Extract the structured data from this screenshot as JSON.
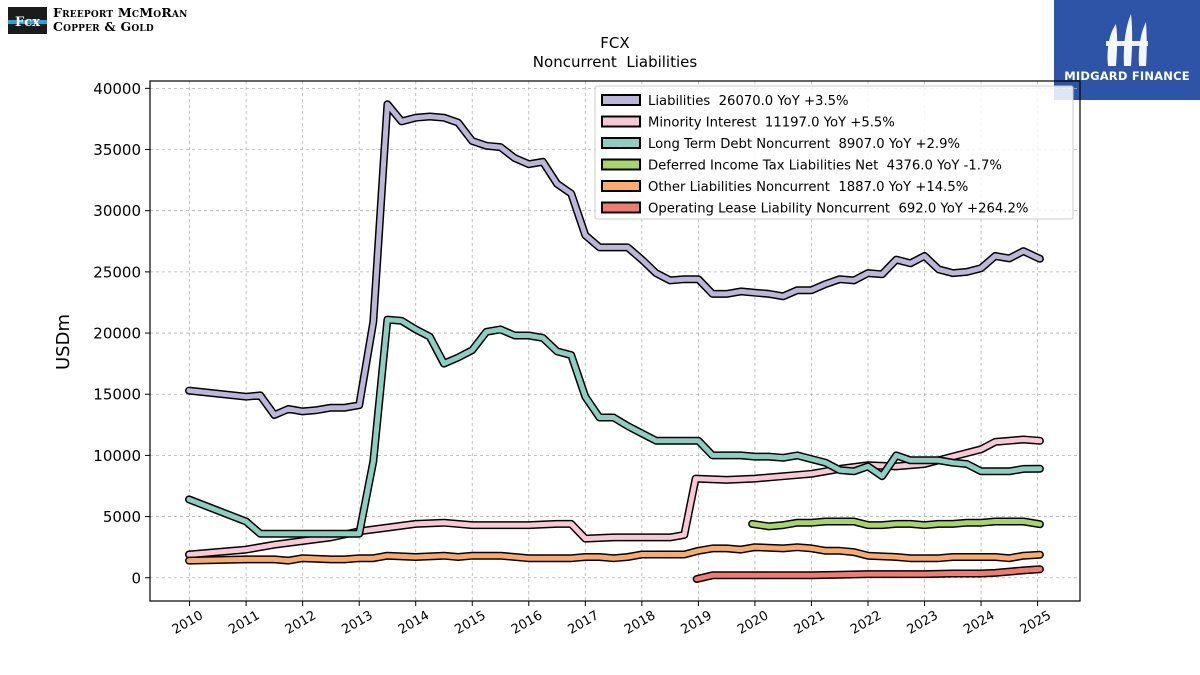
{
  "branding": {
    "company_line1": "Freeport McMoRan",
    "company_line2": "Copper & Gold",
    "logo_mark": "Fcx",
    "watermark": "MIDGARD FINANCE"
  },
  "chart_data": {
    "type": "line",
    "title": "FCX",
    "subtitle": "Noncurrent  Liabilities",
    "xlabel": "",
    "ylabel": "USDm",
    "xlim": [
      2009.3,
      2025.75
    ],
    "ylim": [
      -1900,
      40600
    ],
    "yticks": [
      0,
      5000,
      10000,
      15000,
      20000,
      25000,
      30000,
      35000,
      40000
    ],
    "xticks": [
      2010,
      2011,
      2012,
      2013,
      2014,
      2015,
      2016,
      2017,
      2018,
      2019,
      2020,
      2021,
      2022,
      2023,
      2024,
      2025
    ],
    "grid": true,
    "legend_position": "top-right",
    "series": [
      {
        "name": "Liabilities  26070.0 YoY +3.5%",
        "color": "#bcb6d9",
        "points": [
          [
            2009.99,
            15300
          ],
          [
            2011.0,
            14800
          ],
          [
            2011.25,
            14900
          ],
          [
            2011.5,
            13300
          ],
          [
            2011.75,
            13800
          ],
          [
            2012.0,
            13600
          ],
          [
            2012.25,
            13700
          ],
          [
            2012.5,
            13900
          ],
          [
            2012.75,
            13900
          ],
          [
            2013.0,
            14100
          ],
          [
            2013.25,
            20900
          ],
          [
            2013.5,
            38700
          ],
          [
            2013.75,
            37300
          ],
          [
            2014.0,
            37600
          ],
          [
            2014.25,
            37700
          ],
          [
            2014.5,
            37600
          ],
          [
            2014.75,
            37200
          ],
          [
            2015.0,
            35700
          ],
          [
            2015.25,
            35300
          ],
          [
            2015.5,
            35200
          ],
          [
            2015.75,
            34300
          ],
          [
            2016.0,
            33800
          ],
          [
            2016.25,
            34000
          ],
          [
            2016.5,
            32200
          ],
          [
            2016.75,
            31400
          ],
          [
            2017.0,
            28000
          ],
          [
            2017.25,
            27000
          ],
          [
            2017.5,
            27000
          ],
          [
            2017.75,
            27000
          ],
          [
            2018.0,
            26000
          ],
          [
            2018.25,
            24900
          ],
          [
            2018.5,
            24300
          ],
          [
            2018.75,
            24400
          ],
          [
            2019.0,
            24400
          ],
          [
            2019.25,
            23200
          ],
          [
            2019.5,
            23200
          ],
          [
            2019.75,
            23400
          ],
          [
            2020.0,
            23300
          ],
          [
            2020.25,
            23200
          ],
          [
            2020.5,
            23000
          ],
          [
            2020.75,
            23500
          ],
          [
            2021.0,
            23500
          ],
          [
            2021.25,
            24000
          ],
          [
            2021.5,
            24400
          ],
          [
            2021.75,
            24300
          ],
          [
            2022.0,
            24900
          ],
          [
            2022.25,
            24800
          ],
          [
            2022.5,
            26000
          ],
          [
            2022.75,
            25700
          ],
          [
            2023.0,
            26300
          ],
          [
            2023.25,
            25200
          ],
          [
            2023.5,
            24900
          ],
          [
            2023.75,
            25000
          ],
          [
            2024.0,
            25300
          ],
          [
            2024.25,
            26300
          ],
          [
            2024.5,
            26100
          ],
          [
            2024.75,
            26700
          ],
          [
            2025.04,
            26070
          ]
        ]
      },
      {
        "name": "Minority Interest  11197.0 YoY +5.5%",
        "color": "#f9c8d6",
        "points": [
          [
            2009.99,
            1900
          ],
          [
            2011.0,
            2300
          ],
          [
            2011.5,
            2700
          ],
          [
            2012.0,
            3000
          ],
          [
            2012.5,
            3300
          ],
          [
            2013.0,
            3800
          ],
          [
            2013.5,
            4100
          ],
          [
            2014.0,
            4400
          ],
          [
            2014.5,
            4500
          ],
          [
            2015.0,
            4300
          ],
          [
            2015.5,
            4300
          ],
          [
            2016.0,
            4300
          ],
          [
            2016.5,
            4400
          ],
          [
            2016.75,
            4400
          ],
          [
            2017.0,
            3200
          ],
          [
            2017.5,
            3300
          ],
          [
            2018.0,
            3300
          ],
          [
            2018.5,
            3300
          ],
          [
            2018.75,
            3500
          ],
          [
            2018.95,
            8100
          ],
          [
            2019.5,
            8000
          ],
          [
            2020.0,
            8100
          ],
          [
            2020.5,
            8300
          ],
          [
            2021.0,
            8500
          ],
          [
            2021.5,
            8900
          ],
          [
            2022.0,
            9200
          ],
          [
            2022.5,
            9100
          ],
          [
            2023.0,
            9300
          ],
          [
            2023.5,
            9900
          ],
          [
            2024.0,
            10500
          ],
          [
            2024.25,
            11100
          ],
          [
            2024.5,
            11200
          ],
          [
            2024.75,
            11300
          ],
          [
            2025.04,
            11197
          ]
        ]
      },
      {
        "name": "Long Term Debt Noncurrent  8907.0 YoY +2.9%",
        "color": "#8ccfc0",
        "points": [
          [
            2009.99,
            6400
          ],
          [
            2011.0,
            4600
          ],
          [
            2011.25,
            3600
          ],
          [
            2011.5,
            3600
          ],
          [
            2012.0,
            3600
          ],
          [
            2012.5,
            3600
          ],
          [
            2013.0,
            3600
          ],
          [
            2013.25,
            9500
          ],
          [
            2013.5,
            21100
          ],
          [
            2013.75,
            21000
          ],
          [
            2014.0,
            20300
          ],
          [
            2014.25,
            19700
          ],
          [
            2014.5,
            17500
          ],
          [
            2014.75,
            18000
          ],
          [
            2015.0,
            18600
          ],
          [
            2015.25,
            20100
          ],
          [
            2015.5,
            20300
          ],
          [
            2015.75,
            19800
          ],
          [
            2016.0,
            19800
          ],
          [
            2016.25,
            19600
          ],
          [
            2016.5,
            18500
          ],
          [
            2016.75,
            18200
          ],
          [
            2017.0,
            14800
          ],
          [
            2017.25,
            13100
          ],
          [
            2017.5,
            13100
          ],
          [
            2017.75,
            12400
          ],
          [
            2018.0,
            11800
          ],
          [
            2018.25,
            11200
          ],
          [
            2018.5,
            11200
          ],
          [
            2018.75,
            11200
          ],
          [
            2019.0,
            11200
          ],
          [
            2019.25,
            10000
          ],
          [
            2019.5,
            10000
          ],
          [
            2019.75,
            10000
          ],
          [
            2020.0,
            9900
          ],
          [
            2020.25,
            9900
          ],
          [
            2020.5,
            9800
          ],
          [
            2020.75,
            10000
          ],
          [
            2021.0,
            9700
          ],
          [
            2021.25,
            9400
          ],
          [
            2021.5,
            8800
          ],
          [
            2021.75,
            8700
          ],
          [
            2022.0,
            9100
          ],
          [
            2022.25,
            8300
          ],
          [
            2022.5,
            10000
          ],
          [
            2022.75,
            9600
          ],
          [
            2023.0,
            9600
          ],
          [
            2023.25,
            9600
          ],
          [
            2023.5,
            9400
          ],
          [
            2023.75,
            9300
          ],
          [
            2024.0,
            8700
          ],
          [
            2024.25,
            8700
          ],
          [
            2024.5,
            8700
          ],
          [
            2024.75,
            8900
          ],
          [
            2025.04,
            8907
          ]
        ]
      },
      {
        "name": "Deferred Income Tax Liabilities Net  4376.0 YoY -1.7%",
        "color": "#a8d56a",
        "points": [
          [
            2019.95,
            4400
          ],
          [
            2020.25,
            4200
          ],
          [
            2020.5,
            4300
          ],
          [
            2020.75,
            4500
          ],
          [
            2021.0,
            4500
          ],
          [
            2021.25,
            4600
          ],
          [
            2021.5,
            4600
          ],
          [
            2021.75,
            4600
          ],
          [
            2022.0,
            4300
          ],
          [
            2022.25,
            4300
          ],
          [
            2022.5,
            4400
          ],
          [
            2022.75,
            4400
          ],
          [
            2023.0,
            4300
          ],
          [
            2023.25,
            4400
          ],
          [
            2023.5,
            4400
          ],
          [
            2023.75,
            4500
          ],
          [
            2024.0,
            4500
          ],
          [
            2024.25,
            4600
          ],
          [
            2024.5,
            4600
          ],
          [
            2024.75,
            4600
          ],
          [
            2025.04,
            4376
          ]
        ]
      },
      {
        "name": "Other Liabilities Noncurrent  1887.0 YoY +14.5%",
        "color": "#f9ab6b",
        "points": [
          [
            2009.99,
            1400
          ],
          [
            2011.0,
            1500
          ],
          [
            2011.5,
            1500
          ],
          [
            2011.75,
            1400
          ],
          [
            2012.0,
            1600
          ],
          [
            2012.5,
            1500
          ],
          [
            2012.75,
            1500
          ],
          [
            2013.0,
            1600
          ],
          [
            2013.25,
            1600
          ],
          [
            2013.5,
            1800
          ],
          [
            2014.0,
            1700
          ],
          [
            2014.5,
            1800
          ],
          [
            2014.75,
            1700
          ],
          [
            2015.0,
            1800
          ],
          [
            2015.5,
            1800
          ],
          [
            2016.0,
            1600
          ],
          [
            2016.5,
            1600
          ],
          [
            2016.75,
            1600
          ],
          [
            2017.0,
            1700
          ],
          [
            2017.25,
            1700
          ],
          [
            2017.5,
            1600
          ],
          [
            2017.75,
            1700
          ],
          [
            2018.0,
            1900
          ],
          [
            2018.5,
            1900
          ],
          [
            2018.75,
            1900
          ],
          [
            2019.0,
            2200
          ],
          [
            2019.25,
            2400
          ],
          [
            2019.5,
            2400
          ],
          [
            2019.75,
            2300
          ],
          [
            2020.0,
            2500
          ],
          [
            2020.5,
            2400
          ],
          [
            2020.75,
            2500
          ],
          [
            2021.0,
            2400
          ],
          [
            2021.25,
            2200
          ],
          [
            2021.5,
            2200
          ],
          [
            2021.75,
            2100
          ],
          [
            2022.0,
            1800
          ],
          [
            2022.5,
            1700
          ],
          [
            2022.75,
            1600
          ],
          [
            2023.0,
            1600
          ],
          [
            2023.25,
            1600
          ],
          [
            2023.5,
            1700
          ],
          [
            2023.75,
            1700
          ],
          [
            2024.0,
            1700
          ],
          [
            2024.25,
            1700
          ],
          [
            2024.5,
            1600
          ],
          [
            2024.75,
            1800
          ],
          [
            2025.04,
            1887
          ]
        ]
      },
      {
        "name": "Operating Lease Liability Noncurrent  692.0 YoY +264.2%",
        "color": "#f27a6e",
        "points": [
          [
            2018.97,
            -100
          ],
          [
            2019.25,
            200
          ],
          [
            2019.5,
            200
          ],
          [
            2020.0,
            200
          ],
          [
            2020.5,
            200
          ],
          [
            2021.0,
            200
          ],
          [
            2021.5,
            250
          ],
          [
            2022.0,
            300
          ],
          [
            2022.5,
            300
          ],
          [
            2023.0,
            300
          ],
          [
            2023.5,
            350
          ],
          [
            2024.0,
            350
          ],
          [
            2024.25,
            400
          ],
          [
            2024.5,
            500
          ],
          [
            2024.75,
            600
          ],
          [
            2025.04,
            692
          ]
        ]
      }
    ]
  }
}
